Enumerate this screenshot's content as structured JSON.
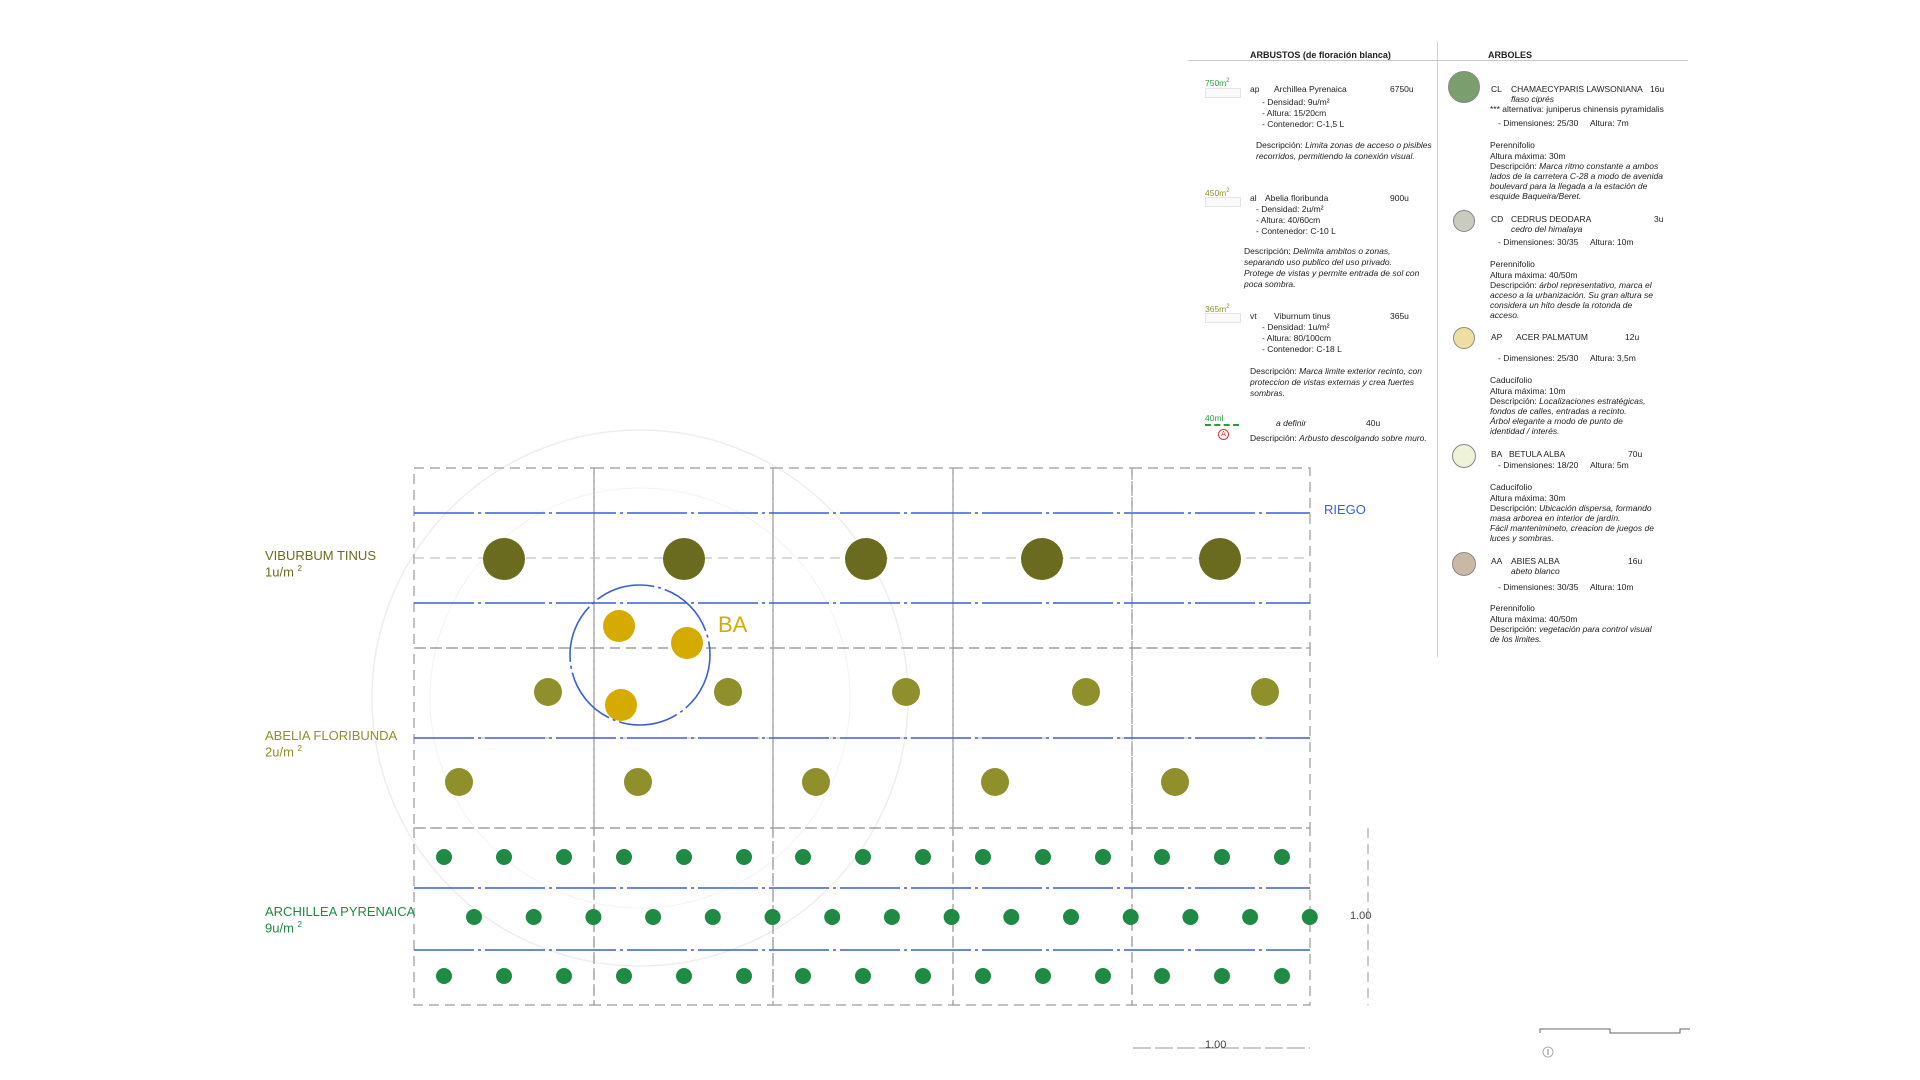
{
  "plan": {
    "species": [
      {
        "id": "viburnum",
        "name": "VIBURBUM TINUS",
        "density": "1u/m",
        "sup": "2",
        "color": "#6b6b1f"
      },
      {
        "id": "abelia",
        "name": "ABELIA FLORIBUNDA",
        "density": "2u/m",
        "sup": "2",
        "color": "#8f8f2c"
      },
      {
        "id": "archillea",
        "name": "ARCHILLEA PYRENAICA",
        "density": "9u/m",
        "sup": "2",
        "color": "#1f8a44"
      }
    ],
    "riego_label": "RIEGO",
    "ba_label": "BA",
    "ba_color": "#d6ab00",
    "pipe_color": "#3a5fd6",
    "dim_vertical": "1.00",
    "dim_horizontal": "1.00"
  },
  "legend": {
    "shrubs_header": "ARBUSTOS (de floración blanca)",
    "trees_header": "ARBOLES",
    "shrubs": [
      {
        "area": "750m",
        "area_sup": "2",
        "code": "ap",
        "name": "Archillea Pyrenaica",
        "qty": "6750u",
        "details": [
          "- Densidad: 9u/m²",
          "- Altura: 15/20cm",
          "- Contenedor: C-1,5 L"
        ],
        "desc_label": "Descripción:",
        "desc": [
          "Limita zonas de acceso o pisibles",
          "recorridos, permitiendo la conexión visual."
        ]
      },
      {
        "area": "450m",
        "area_sup": "2",
        "code": "al",
        "name": "Abelia floribunda",
        "qty": "900u",
        "details": [
          "- Densidad: 2u/m²",
          "- Altura: 40/60cm",
          "- Contenedor: C-10 L"
        ],
        "desc_label": "Descripción:",
        "desc": [
          "Delimita ambitos o zonas,",
          "separando uso publico del uso privado.",
          "Protege de vistas y permite entrada de sol con",
          "poca sombra."
        ]
      },
      {
        "area": "365m",
        "area_sup": "2",
        "code": "vt",
        "name": "Viburnum tinus",
        "qty": "365u",
        "details": [
          "- Densidad: 1u/m²",
          "- Altura: 80/100cm",
          "- Contenedor: C-18 L"
        ],
        "desc_label": "Descripción:",
        "desc": [
          "Marca limite exterior recinto, con",
          "proteccion de vistas externas y crea fuertes",
          "sombras."
        ]
      },
      {
        "area": "40ml",
        "area_sup": "",
        "code": "A",
        "name": "a definir",
        "qty": "40u",
        "details": [],
        "desc_label": "Descripción:",
        "desc": [
          "Arbusto descolgando sobre muro."
        ]
      }
    ],
    "trees": [
      {
        "code": "CL",
        "name": "CHAMAECYPARIS LAWSONIANA",
        "common": "flaso ciprés",
        "qty": "16u",
        "alt": "***  alternativa: juniperus chinensis pyramidalis",
        "dims": "- Dimensiones: 25/30",
        "height": "Altura: 7m",
        "type": "Perennifolio",
        "max": "Altura máxima: 30m",
        "desc_label": "Descripción:",
        "desc": [
          "Marca ritmo constante a ambos",
          "lados de la carretera C-28 a modo de avenida",
          "boulevard para la llegada a la estación de",
          "esquide Baqueira/Beret."
        ],
        "color": "#7a9e6e"
      },
      {
        "code": "CD",
        "name": "CEDRUS DEODARA",
        "common": "cedro del himalaya",
        "qty": "3u",
        "alt": "",
        "dims": "- Dimensiones: 30/35",
        "height": "Altura: 10m",
        "type": "Perennifolio",
        "max": "Altura máxima: 40/50m",
        "desc_label": "Descripción:",
        "desc": [
          "árbol representativo, marca el",
          "acceso a la urbanización. Su gran altura se",
          "considera un hito desde la rotonda de",
          "acceso."
        ],
        "color": "#c9cbbf"
      },
      {
        "code": "AP",
        "name": "ACER PALMATUM",
        "common": "",
        "qty": "12u",
        "alt": "",
        "dims": "- Dimensiones: 25/30",
        "height": "Altura: 3,5m",
        "type": "Caducifolio",
        "max": "Altura máxima: 10m",
        "desc_label": "Descripción:",
        "desc": [
          "Localizaciones estratégicas,",
          "fondos de calles, entradas a recinto.",
          "Árbol elegante a modo de punto de",
          "identidad / interés."
        ],
        "color": "#ecdfa0"
      },
      {
        "code": "BA",
        "name": "BETULA ALBA",
        "common": "",
        "qty": "70u",
        "alt": "",
        "dims": "- Dimensiones: 18/20",
        "height": "Altura: 5m",
        "type": "Caducifolio",
        "max": "Altura máxima: 30m",
        "desc_label": "Descripción:",
        "desc": [
          "Ubicación dispersa, formando",
          "masa arborea en interior de jardín.",
          "Fácil mantenimineto, creacion de juegos de",
          "luces y sombras."
        ],
        "color": "#eef2d9"
      },
      {
        "code": "AA",
        "name": "ABIES ALBA",
        "common": "abeto blanco",
        "qty": "16u",
        "alt": "",
        "dims": "- Dimensiones: 30/35",
        "height": "Altura: 10m",
        "type": "Perennifolio",
        "max": "Altura máxima: 40/50m",
        "desc_label": "Descripción:",
        "desc": [
          "vegetación para control visual",
          "de los limites."
        ],
        "color": "#c9b9a4"
      }
    ]
  }
}
